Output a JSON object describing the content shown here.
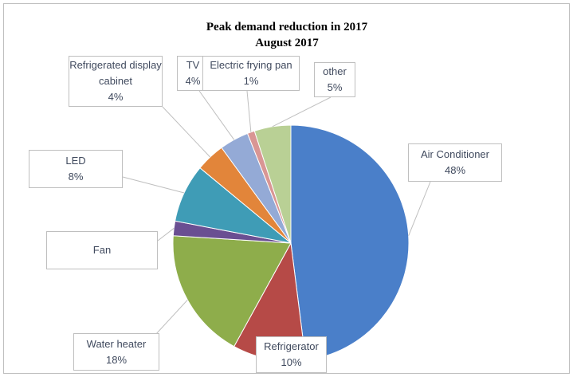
{
  "chart_data": {
    "type": "pie",
    "title": "Peak demand reduction in 2017",
    "subtitle": "August 2017",
    "categories": [
      "Air Conditioner",
      "Refrigerator",
      "Water heater",
      "Fan",
      "LED",
      "Refrigerated display cabinet",
      "TV",
      "Electric frying pan",
      "other"
    ],
    "values": [
      48,
      10,
      18,
      2,
      8,
      4,
      4,
      1,
      5
    ],
    "value_labels": [
      "48%",
      "10%",
      "18%",
      null,
      "8%",
      "4%",
      "4%",
      "1%",
      "5%"
    ],
    "colors": [
      "#4a7fc9",
      "#b64a47",
      "#8ead4b",
      "#6a4f92",
      "#3f9cb6",
      "#e2853a",
      "#94aad6",
      "#d99694",
      "#b9d095"
    ]
  }
}
